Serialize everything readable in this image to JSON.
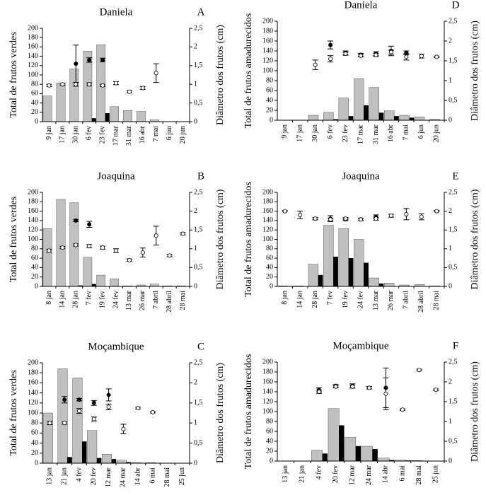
{
  "chart_data": [
    {
      "type": "bar",
      "title": "Daniela",
      "panel_label": "A",
      "ylabel": "Total de frutos verdes",
      "y2label": "Diâmetro dos frutos (cm)",
      "categories": [
        "9 jan",
        "17 jan",
        "30 jan",
        "6 fev",
        "23 fev",
        "17 mar",
        "31 mar",
        "16 abr",
        "7 mai",
        "6 jun",
        "20 jun"
      ],
      "ylim": [
        0,
        200
      ],
      "yticks": [
        0,
        20,
        40,
        60,
        80,
        100,
        120,
        140,
        160,
        180,
        200
      ],
      "y2lim": [
        0,
        2.5
      ],
      "y2ticks": [
        0,
        {
          "value": 0.5,
          "label": "0,5"
        },
        1,
        {
          "value": 1.5,
          "label": "1,5"
        },
        2,
        {
          "value": 2.5,
          "label": "2,5"
        }
      ],
      "series": [
        {
          "color": "#c0c0c0",
          "values": [
            55,
            83,
            113,
            151,
            165,
            32,
            24,
            22,
            4,
            0,
            0
          ]
        },
        {
          "color": "#000000",
          "values": [
            0,
            0,
            0,
            7,
            18,
            0,
            0,
            0,
            0,
            0,
            0
          ]
        },
        {
          "color": "#000000",
          "axis": "y2",
          "values": [
            null,
            null,
            1.55,
            1.65,
            1.65,
            null,
            null,
            null,
            null,
            null,
            null
          ],
          "errors": [
            null,
            null,
            0.5,
            0.06,
            0.05,
            null,
            null,
            null,
            null,
            null,
            null
          ]
        },
        {
          "color": "#ffffff",
          "axis": "y2",
          "values": [
            0.97,
            1.0,
            1.0,
            1.0,
            0.97,
            1.03,
            0.8,
            0.9,
            1.3,
            null,
            null
          ],
          "errors": [
            0.03,
            0.03,
            0.05,
            0.04,
            0.03,
            0.04,
            0.03,
            0.04,
            0.25,
            null,
            null
          ]
        }
      ]
    },
    {
      "type": "bar",
      "title": "Joaquina",
      "panel_label": "B",
      "ylabel": "Total de frutos verdes",
      "y2label": "Diâmetro dos frutos (cm)",
      "categories": [
        "8 jan",
        "14 jan",
        "28 jan",
        "7 fev",
        "19 fev",
        "24 fev",
        "13 mar",
        "26 mar",
        "7 abril",
        "28 abril",
        "28 mai"
      ],
      "ylim": [
        0,
        200
      ],
      "yticks": [
        0,
        20,
        40,
        60,
        80,
        100,
        120,
        140,
        160,
        180,
        200
      ],
      "y2lim": [
        0,
        2.5
      ],
      "y2ticks": [
        0,
        {
          "value": 0.5,
          "label": "0,5"
        },
        1,
        {
          "value": 1.5,
          "label": "1,5"
        },
        2,
        {
          "value": 2.5,
          "label": "2,5"
        }
      ],
      "series": [
        {
          "color": "#c0c0c0",
          "values": [
            123,
            185,
            178,
            62,
            24,
            16,
            1,
            3,
            5,
            1,
            1
          ]
        },
        {
          "color": "#000000",
          "values": [
            0,
            0,
            2,
            5,
            0,
            0,
            0,
            0,
            0,
            0,
            0
          ]
        },
        {
          "color": "#000000",
          "axis": "y2",
          "values": [
            null,
            null,
            1.75,
            1.65,
            null,
            null,
            null,
            null,
            null,
            null,
            null
          ],
          "errors": [
            null,
            null,
            0.03,
            0.08,
            null,
            null,
            null,
            null,
            null,
            null,
            null
          ]
        },
        {
          "color": "#ffffff",
          "axis": "y2",
          "values": [
            0.95,
            1.03,
            1.1,
            1.07,
            1.03,
            0.95,
            0.7,
            0.9,
            1.35,
            0.82,
            1.4
          ],
          "errors": [
            0.04,
            0.03,
            0.03,
            0.04,
            0.04,
            0.05,
            0.03,
            0.12,
            0.25,
            0.03,
            0.03
          ]
        }
      ]
    },
    {
      "type": "bar",
      "title": "Moçambique",
      "panel_label": "C",
      "ylabel": "Total de frutos verdes",
      "y2label": "Diâmetro dos frutos (cm)",
      "categories": [
        "13 jan",
        "21 jan",
        "4 fev",
        "20 fev",
        "12 mar",
        "24 mar",
        "14 abr",
        "6 mai",
        "28 mai",
        "25 jun"
      ],
      "ylim": [
        0,
        200
      ],
      "yticks": [
        0,
        20,
        40,
        60,
        80,
        100,
        120,
        140,
        160,
        180,
        200
      ],
      "y2lim": [
        0,
        2.5
      ],
      "y2ticks": [
        0,
        {
          "value": 0.5,
          "label": "0,5"
        },
        1,
        {
          "value": 1.5,
          "label": "1,5"
        },
        2,
        {
          "value": 2.5,
          "label": "2,5"
        }
      ],
      "series": [
        {
          "color": "#c0c0c0",
          "values": [
            100,
            188,
            170,
            65,
            18,
            6,
            1,
            1,
            0,
            0
          ]
        },
        {
          "color": "#000000",
          "values": [
            0,
            12,
            43,
            10,
            8,
            2,
            0,
            0,
            0,
            0
          ]
        },
        {
          "color": "#000000",
          "axis": "y2",
          "values": [
            null,
            1.58,
            1.58,
            1.5,
            1.7,
            null,
            null,
            null,
            null,
            null
          ],
          "errors": [
            null,
            0.08,
            0.03,
            0.06,
            0.15,
            null,
            null,
            null,
            null,
            null
          ]
        },
        {
          "color": "#ffffff",
          "axis": "y2",
          "values": [
            1.0,
            1.0,
            1.3,
            1.1,
            1.4,
            0.85,
            1.37,
            1.27,
            null,
            null
          ],
          "errors": [
            0.04,
            0.03,
            0.06,
            0.05,
            0.07,
            0.12,
            0.02,
            0.02,
            null,
            null
          ]
        }
      ]
    },
    {
      "type": "bar",
      "title": "Daniela",
      "panel_label": "D",
      "ylabel": "Total de frutos amadurecidos",
      "y2label": "Diâmetro dos frutos (cm)",
      "categories": [
        "9 jan",
        "17 jan",
        "30 jan",
        "6 fev",
        "23 fev",
        "17 mar",
        "31 mar",
        "16 abr",
        "7 mai",
        "6 jun",
        "20 jun"
      ],
      "ylim": [
        0,
        200
      ],
      "yticks": [
        0,
        20,
        40,
        60,
        80,
        100,
        120,
        140,
        160,
        180,
        200
      ],
      "y2lim": [
        0,
        2.5
      ],
      "y2ticks": [
        0,
        {
          "value": 0.5,
          "label": "0,5"
        },
        1,
        {
          "value": 1.5,
          "label": "1,5"
        },
        2,
        {
          "value": 2.5,
          "label": "2,5"
        }
      ],
      "series": [
        {
          "color": "#c0c0c0",
          "values": [
            0,
            0,
            10,
            16,
            45,
            84,
            66,
            19,
            10,
            7,
            2
          ]
        },
        {
          "color": "#000000",
          "values": [
            0,
            0,
            0,
            2,
            8,
            30,
            15,
            8,
            5,
            0,
            0
          ]
        },
        {
          "color": "#000000",
          "axis": "y2",
          "values": [
            null,
            null,
            null,
            1.9,
            1.7,
            1.65,
            1.68,
            1.75,
            1.7,
            null,
            null
          ],
          "errors": [
            null,
            null,
            null,
            0.1,
            0.05,
            0.04,
            0.05,
            0.12,
            0.05,
            null,
            null
          ]
        },
        {
          "color": "#ffffff",
          "axis": "y2",
          "values": [
            null,
            null,
            1.4,
            1.55,
            1.68,
            1.63,
            1.65,
            1.72,
            1.6,
            1.62,
            1.6
          ],
          "errors": [
            null,
            null,
            0.12,
            0.08,
            0.04,
            0.03,
            0.04,
            0.05,
            0.08,
            0.05,
            0.02
          ]
        }
      ]
    },
    {
      "type": "bar",
      "title": "Joaquina",
      "panel_label": "E",
      "ylabel": "Total de frutos amadurecidos",
      "y2label": "Diâmetro dos frutos (cm)",
      "categories": [
        "8 jan",
        "14 jan",
        "28 jan",
        "7 fev",
        "19 fev",
        "24 fev",
        "13 mar",
        "26 mar",
        "7 abril",
        "28 abril",
        "28 mai"
      ],
      "ylim": [
        0,
        200
      ],
      "yticks": [
        0,
        20,
        40,
        60,
        80,
        100,
        120,
        140,
        160,
        180,
        200
      ],
      "y2lim": [
        0,
        2.5
      ],
      "y2ticks": [
        0,
        {
          "value": 0.5,
          "label": "0,5"
        },
        1,
        {
          "value": 1.5,
          "label": "1,5"
        },
        2,
        {
          "value": 2.5,
          "label": "2,5"
        }
      ],
      "series": [
        {
          "color": "#c0c0c0",
          "values": [
            1,
            1,
            47,
            130,
            123,
            100,
            18,
            7,
            3,
            4,
            1
          ]
        },
        {
          "color": "#000000",
          "values": [
            0,
            0,
            24,
            63,
            60,
            50,
            6,
            0,
            0,
            0,
            0
          ]
        },
        {
          "color": "#000000",
          "axis": "y2",
          "values": [
            null,
            null,
            1.8,
            1.8,
            1.78,
            1.78,
            1.85,
            null,
            null,
            null,
            null
          ],
          "errors": [
            null,
            null,
            0.03,
            0.08,
            0.03,
            0.03,
            0.05,
            null,
            null,
            null,
            null
          ]
        },
        {
          "color": "#ffffff",
          "axis": "y2",
          "values": [
            2.0,
            1.9,
            1.8,
            1.78,
            1.8,
            1.78,
            1.8,
            1.88,
            1.92,
            1.85,
            2.0
          ],
          "errors": [
            0.02,
            0.1,
            0.03,
            0.03,
            0.03,
            0.03,
            0.04,
            0.04,
            0.15,
            0.08,
            0.02
          ]
        }
      ]
    },
    {
      "type": "bar",
      "title": "Moçambique",
      "panel_label": "F",
      "ylabel": "Total de frutos amadurecidos",
      "y2label": "Diâmetro dos frutos (cm)",
      "categories": [
        "13 jan",
        "21 jan",
        "4 fev",
        "20 fev",
        "12 mar",
        "24 mar",
        "14 abr",
        "6 mai",
        "28 mai",
        "25 jun"
      ],
      "ylim": [
        0,
        200
      ],
      "yticks": [
        0,
        20,
        40,
        60,
        80,
        100,
        120,
        140,
        160,
        180,
        200
      ],
      "y2lim": [
        0,
        2.5
      ],
      "y2ticks": [
        0,
        {
          "value": 0.5,
          "label": "0,5"
        },
        1,
        {
          "value": 1.5,
          "label": "1,5"
        },
        2,
        {
          "value": 2.5,
          "label": "2,5"
        }
      ],
      "series": [
        {
          "color": "#c0c0c0",
          "values": [
            0,
            0,
            22,
            106,
            48,
            30,
            6,
            2,
            1,
            0
          ]
        },
        {
          "color": "#000000",
          "values": [
            0,
            0,
            15,
            72,
            30,
            24,
            2,
            1,
            0,
            0
          ]
        },
        {
          "color": "#000000",
          "axis": "y2",
          "values": [
            null,
            null,
            1.8,
            1.9,
            1.9,
            1.85,
            1.85,
            null,
            null,
            null
          ],
          "errors": [
            null,
            null,
            0.05,
            0.03,
            0.05,
            0.03,
            0.5,
            null,
            null,
            null
          ]
        },
        {
          "color": "#ffffff",
          "axis": "y2",
          "values": [
            null,
            null,
            1.75,
            1.88,
            1.88,
            1.85,
            1.7,
            1.3,
            2.3,
            1.8
          ],
          "errors": [
            null,
            null,
            0.04,
            0.03,
            0.04,
            0.03,
            0.4,
            0.02,
            0.02,
            0.02
          ]
        }
      ]
    }
  ]
}
